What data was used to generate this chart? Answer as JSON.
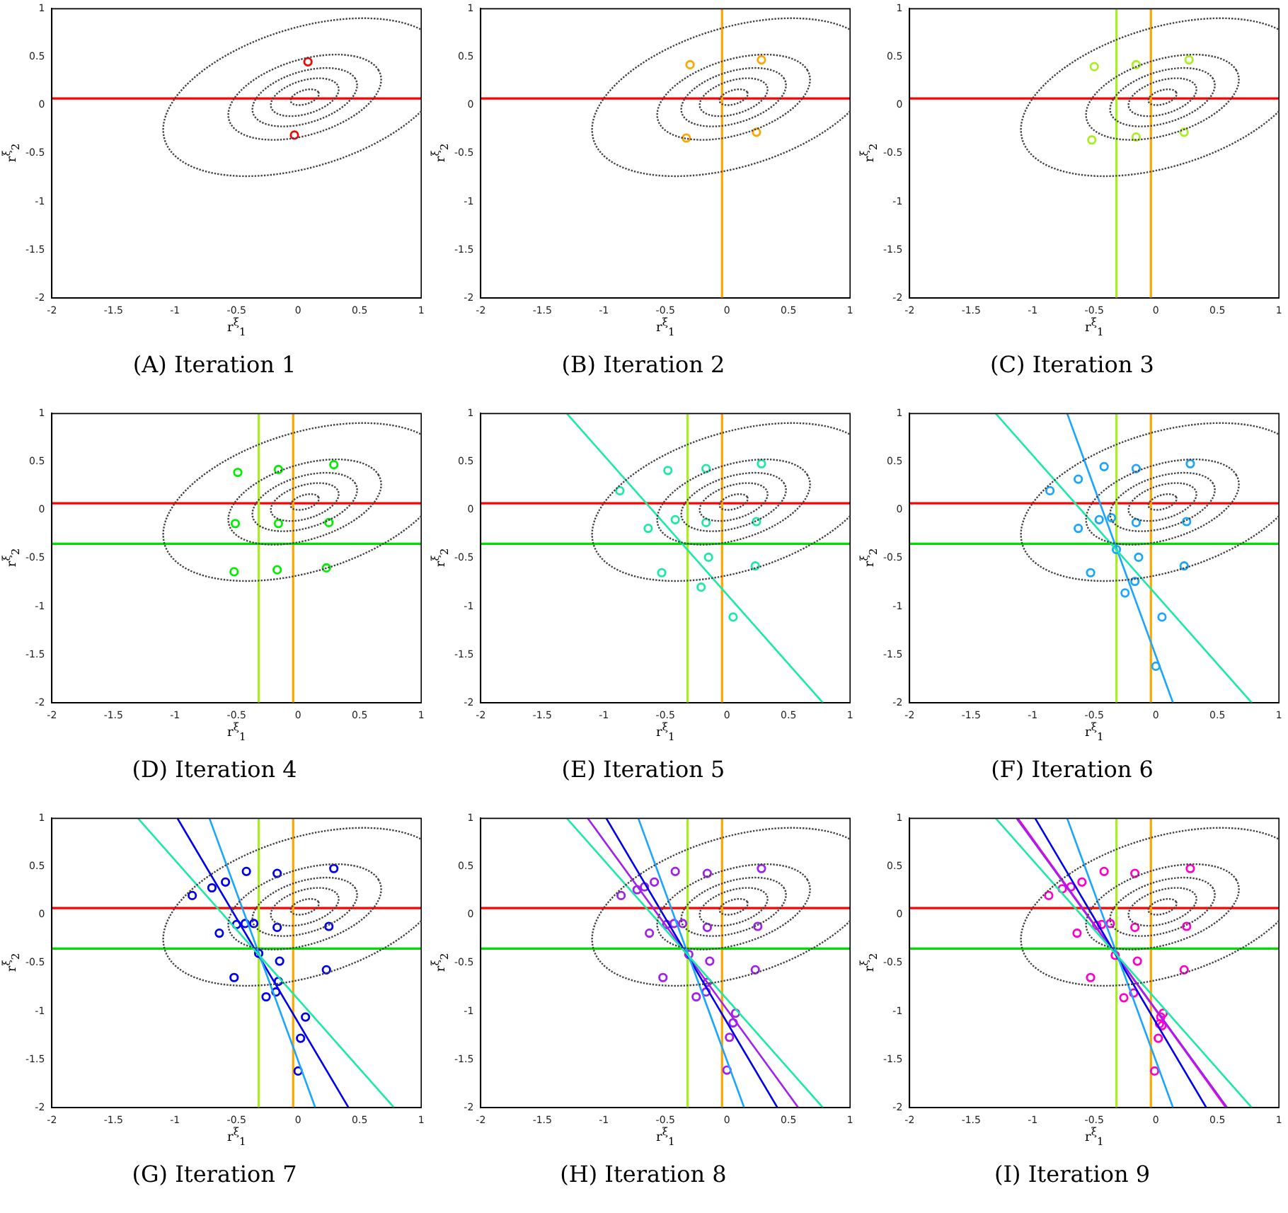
{
  "chart_data": [
    {
      "type": "scatter",
      "title": "(A) Iteration 1",
      "xlabel": "r$^{ξ}$$_{1}$",
      "ylabel": "r$^{ξ}$$_{2}$",
      "xlim": [
        -2,
        1
      ],
      "ylim": [
        -2,
        1
      ],
      "xticks": [
        -2,
        -1.5,
        -1,
        -0.5,
        0,
        0.5,
        1
      ],
      "yticks": [
        -2,
        -1.5,
        -1,
        -0.5,
        0,
        0.5,
        1
      ],
      "ref_lines": [
        {
          "axis": "y",
          "value": 0.07,
          "color": "#ff0000"
        }
      ],
      "series": [
        {
          "type": "scatter",
          "color": "#ff0000",
          "marker": "circle",
          "x": [
            0.08,
            -0.03
          ],
          "values": [
            0.45,
            -0.31
          ]
        }
      ]
    },
    {
      "type": "scatter",
      "title": "(B) Iteration 2",
      "xlabel": "r$^{ξ}$$_{1}$",
      "ylabel": "r$^{ξ}$$_{2}$",
      "xlim": [
        -2,
        1
      ],
      "ylim": [
        -2,
        1
      ],
      "xticks": [
        -2,
        -1.5,
        -1,
        -0.5,
        0,
        0.5,
        1
      ],
      "yticks": [
        -2,
        -1.5,
        -1,
        -0.5,
        0,
        0.5,
        1
      ],
      "ref_lines": [
        {
          "axis": "y",
          "value": 0.07,
          "color": "#ff0000"
        },
        {
          "axis": "x",
          "value": -0.04,
          "color": "#ffa500"
        }
      ],
      "series": [
        {
          "type": "scatter",
          "color": "#ffa500",
          "marker": "circle",
          "x": [
            -0.3,
            0.28,
            -0.33,
            0.24
          ],
          "values": [
            0.42,
            0.47,
            -0.34,
            -0.28
          ]
        }
      ]
    },
    {
      "type": "scatter",
      "title": "(C) Iteration 3",
      "xlabel": "r$^{ξ}$$_{1}$",
      "ylabel": "r$^{ξ}$$_{2}$",
      "xlim": [
        -2,
        1
      ],
      "ylim": [
        -2,
        1
      ],
      "xticks": [
        -2,
        -1.5,
        -1,
        -0.5,
        0,
        0.5,
        1
      ],
      "yticks": [
        -2,
        -1.5,
        -1,
        -0.5,
        0,
        0.5,
        1
      ],
      "ref_lines": [
        {
          "axis": "y",
          "value": 0.07,
          "color": "#ff0000"
        },
        {
          "axis": "x",
          "value": -0.04,
          "color": "#ffa500"
        },
        {
          "axis": "x",
          "value": -0.32,
          "color": "#aaee22"
        }
      ],
      "series": [
        {
          "type": "scatter",
          "color": "#aaee22",
          "marker": "circle",
          "x": [
            -0.5,
            -0.16,
            0.27,
            -0.52,
            -0.16,
            0.23
          ],
          "values": [
            0.4,
            0.42,
            0.47,
            -0.36,
            -0.33,
            -0.28
          ]
        }
      ]
    },
    {
      "type": "scatter",
      "title": "(D) Iteration 4",
      "xlabel": "r$^{ξ}$$_{1}$",
      "ylabel": "r$^{ξ}$$_{2}$",
      "xlim": [
        -2,
        1
      ],
      "ylim": [
        -2,
        1
      ],
      "xticks": [
        -2,
        -1.5,
        -1,
        -0.5,
        0,
        0.5,
        1
      ],
      "yticks": [
        -2,
        -1.5,
        -1,
        -0.5,
        0,
        0.5,
        1
      ],
      "ref_lines": [
        {
          "axis": "y",
          "value": 0.07,
          "color": "#ff0000"
        },
        {
          "axis": "x",
          "value": -0.04,
          "color": "#ffa500"
        },
        {
          "axis": "x",
          "value": -0.32,
          "color": "#aaee22"
        },
        {
          "axis": "y",
          "value": -0.35,
          "color": "#00dd00"
        }
      ],
      "series": [
        {
          "type": "scatter",
          "color": "#00ee00",
          "marker": "circle",
          "x": [
            -0.49,
            -0.16,
            0.29,
            -0.51,
            -0.16,
            0.25,
            -0.52,
            -0.17,
            0.23
          ],
          "values": [
            0.39,
            0.42,
            0.47,
            -0.14,
            -0.14,
            -0.13,
            -0.64,
            -0.62,
            -0.6
          ]
        }
      ]
    },
    {
      "type": "scatter",
      "title": "(E) Iteration 5",
      "xlabel": "r$^{ξ}$$_{1}$",
      "ylabel": "r$^{ξ}$$_{2}$",
      "xlim": [
        -2,
        1
      ],
      "ylim": [
        -2,
        1
      ],
      "xticks": [
        -2,
        -1.5,
        -1,
        -0.5,
        0,
        0.5,
        1
      ],
      "yticks": [
        -2,
        -1.5,
        -1,
        -0.5,
        0,
        0.5,
        1
      ],
      "ref_lines": [
        {
          "axis": "y",
          "value": 0.07,
          "color": "#ff0000"
        },
        {
          "axis": "x",
          "value": -0.04,
          "color": "#ffa500"
        },
        {
          "axis": "x",
          "value": -0.32,
          "color": "#aaee22"
        },
        {
          "axis": "y",
          "value": -0.35,
          "color": "#00dd00"
        }
      ],
      "series": [
        {
          "type": "line",
          "color": "#1de9a6",
          "line_style": "solid",
          "marker": "none",
          "x": [
            -1.3,
            0.78
          ],
          "values": [
            1,
            -2
          ]
        },
        {
          "type": "scatter",
          "color": "#1de9a6",
          "marker": "circle",
          "x": [
            -0.48,
            -0.17,
            0.28,
            -0.87,
            -0.42,
            -0.17,
            0.24,
            -0.64,
            -0.15,
            -0.53,
            0.23,
            -0.21,
            0.05
          ],
          "values": [
            0.41,
            0.43,
            0.48,
            0.2,
            -0.1,
            -0.13,
            -0.12,
            -0.19,
            -0.49,
            -0.65,
            -0.58,
            -0.8,
            -1.11
          ]
        }
      ]
    },
    {
      "type": "scatter",
      "title": "(F) Iteration 6",
      "xlabel": "r$^{ξ}$$_{1}$",
      "ylabel": "r$^{ξ}$$_{2}$",
      "xlim": [
        -2,
        1
      ],
      "ylim": [
        -2,
        1
      ],
      "xticks": [
        -2,
        -1.5,
        -1,
        -0.5,
        0,
        0.5,
        1
      ],
      "yticks": [
        -2,
        -1.5,
        -1,
        -0.5,
        0,
        0.5,
        1
      ],
      "ref_lines": [
        {
          "axis": "y",
          "value": 0.07,
          "color": "#ff0000"
        },
        {
          "axis": "x",
          "value": -0.04,
          "color": "#ffa500"
        },
        {
          "axis": "x",
          "value": -0.32,
          "color": "#aaee22"
        },
        {
          "axis": "y",
          "value": -0.35,
          "color": "#00dd00"
        }
      ],
      "series": [
        {
          "type": "line",
          "color": "#1de9a6",
          "line_style": "solid",
          "marker": "none",
          "x": [
            -1.3,
            0.78
          ],
          "values": [
            1,
            -2
          ]
        },
        {
          "type": "line",
          "color": "#1aa6ff",
          "line_style": "solid",
          "marker": "none",
          "x": [
            -0.72,
            0.14
          ],
          "values": [
            1,
            -2
          ]
        },
        {
          "type": "scatter",
          "color": "#1aa6ff",
          "marker": "circle",
          "x": [
            -0.86,
            -0.63,
            -0.42,
            -0.16,
            0.28,
            -0.46,
            -0.36,
            -0.16,
            0.25,
            -0.63,
            -0.32,
            -0.14,
            -0.53,
            0.23,
            -0.17,
            -0.25,
            0.05,
            0
          ],
          "values": [
            0.2,
            0.32,
            0.45,
            0.43,
            0.48,
            -0.1,
            -0.08,
            -0.13,
            -0.12,
            -0.19,
            -0.41,
            -0.49,
            -0.65,
            -0.58,
            -0.74,
            -0.86,
            -1.11,
            -1.62
          ]
        }
      ]
    },
    {
      "type": "scatter",
      "title": "(G) Iteration 7",
      "xlabel": "r$^{ξ}$$_{1}$",
      "ylabel": "r$^{ξ}$$_{2}$",
      "xlim": [
        -2,
        1
      ],
      "ylim": [
        -2,
        1
      ],
      "xticks": [
        -2,
        -1.5,
        -1,
        -0.5,
        0,
        0.5,
        1
      ],
      "yticks": [
        -2,
        -1.5,
        -1,
        -0.5,
        0,
        0.5,
        1
      ],
      "ref_lines": [
        {
          "axis": "y",
          "value": 0.07,
          "color": "#ff0000"
        },
        {
          "axis": "x",
          "value": -0.04,
          "color": "#ffa500"
        },
        {
          "axis": "x",
          "value": -0.32,
          "color": "#aaee22"
        },
        {
          "axis": "y",
          "value": -0.35,
          "color": "#00dd00"
        }
      ],
      "series": [
        {
          "type": "line",
          "color": "#1de9a6",
          "line_style": "solid",
          "marker": "none",
          "x": [
            -1.3,
            0.78
          ],
          "values": [
            1,
            -2
          ]
        },
        {
          "type": "line",
          "color": "#1aa6ff",
          "line_style": "solid",
          "marker": "none",
          "x": [
            -0.72,
            0.14
          ],
          "values": [
            1,
            -2
          ]
        },
        {
          "type": "line",
          "color": "#0000ee",
          "line_style": "solid",
          "marker": "none",
          "x": [
            -0.98,
            0.41
          ],
          "values": [
            1,
            -2
          ]
        },
        {
          "type": "scatter",
          "color": "#0000ee",
          "marker": "circle",
          "x": [
            -0.86,
            -0.7,
            -0.59,
            -0.42,
            -0.17,
            0.29,
            -0.5,
            -0.43,
            -0.36,
            -0.17,
            0.25,
            -0.64,
            -0.32,
            -0.15,
            -0.52,
            0.23,
            -0.16,
            -0.18,
            -0.26,
            0.06,
            0.02,
            0
          ],
          "values": [
            0.2,
            0.28,
            0.34,
            0.45,
            0.43,
            0.48,
            -0.1,
            -0.09,
            -0.09,
            -0.13,
            -0.12,
            -0.19,
            -0.4,
            -0.48,
            -0.65,
            -0.57,
            -0.69,
            -0.8,
            -0.85,
            -1.06,
            -1.28,
            -1.62
          ]
        }
      ]
    },
    {
      "type": "scatter",
      "title": "(H) Iteration 8",
      "xlabel": "r$^{ξ}$$_{1}$",
      "ylabel": "r$^{ξ}$$_{2}$",
      "xlim": [
        -2,
        1
      ],
      "ylim": [
        -2,
        1
      ],
      "xticks": [
        -2,
        -1.5,
        -1,
        -0.5,
        0,
        0.5,
        1
      ],
      "yticks": [
        -2,
        -1.5,
        -1,
        -0.5,
        0,
        0.5,
        1
      ],
      "ref_lines": [
        {
          "axis": "y",
          "value": 0.07,
          "color": "#ff0000"
        },
        {
          "axis": "x",
          "value": -0.04,
          "color": "#ffa500"
        },
        {
          "axis": "x",
          "value": -0.32,
          "color": "#aaee22"
        },
        {
          "axis": "y",
          "value": -0.35,
          "color": "#00dd00"
        }
      ],
      "series": [
        {
          "type": "line",
          "color": "#1de9a6",
          "line_style": "solid",
          "marker": "none",
          "x": [
            -1.3,
            0.78
          ],
          "values": [
            1,
            -2
          ]
        },
        {
          "type": "line",
          "color": "#1aa6ff",
          "line_style": "solid",
          "marker": "none",
          "x": [
            -0.72,
            0.14
          ],
          "values": [
            1,
            -2
          ]
        },
        {
          "type": "line",
          "color": "#0000ee",
          "line_style": "solid",
          "marker": "none",
          "x": [
            -0.98,
            0.41
          ],
          "values": [
            1,
            -2
          ]
        },
        {
          "type": "line",
          "color": "#a020f0",
          "line_style": "solid",
          "marker": "none",
          "x": [
            -1.13,
            0.58
          ],
          "values": [
            1,
            -2
          ]
        },
        {
          "type": "scatter",
          "color": "#a020f0",
          "marker": "circle",
          "x": [
            -0.86,
            -0.73,
            -0.67,
            -0.59,
            -0.42,
            -0.16,
            0.28,
            -0.49,
            -0.43,
            -0.36,
            -0.16,
            0.25,
            -0.63,
            -0.31,
            -0.14,
            -0.52,
            0.23,
            -0.16,
            -0.17,
            -0.25,
            0.07,
            0.05,
            0.02,
            0
          ],
          "values": [
            0.2,
            0.26,
            0.29,
            0.34,
            0.45,
            0.43,
            0.48,
            -0.1,
            -0.09,
            -0.09,
            -0.13,
            -0.12,
            -0.19,
            -0.41,
            -0.48,
            -0.65,
            -0.57,
            -0.7,
            -0.8,
            -0.85,
            -1.02,
            -1.12,
            -1.27,
            -1.61
          ]
        }
      ]
    },
    {
      "type": "scatter",
      "title": "(I) Iteration 9",
      "xlabel": "r$^{ξ}$$_{1}$",
      "ylabel": "r$^{ξ}$$_{2}$",
      "xlim": [
        -2,
        1
      ],
      "ylim": [
        -2,
        1
      ],
      "xticks": [
        -2,
        -1.5,
        -1,
        -0.5,
        0,
        0.5,
        1
      ],
      "yticks": [
        -2,
        -1.5,
        -1,
        -0.5,
        0,
        0.5,
        1
      ],
      "ref_lines": [
        {
          "axis": "y",
          "value": 0.07,
          "color": "#ff0000"
        },
        {
          "axis": "x",
          "value": -0.04,
          "color": "#ffa500"
        },
        {
          "axis": "x",
          "value": -0.32,
          "color": "#aaee22"
        },
        {
          "axis": "y",
          "value": -0.35,
          "color": "#00dd00"
        }
      ],
      "series": [
        {
          "type": "line",
          "color": "#1de9a6",
          "line_style": "solid",
          "marker": "none",
          "x": [
            -1.3,
            0.78
          ],
          "values": [
            1,
            -2
          ]
        },
        {
          "type": "line",
          "color": "#1aa6ff",
          "line_style": "solid",
          "marker": "none",
          "x": [
            -0.72,
            0.14
          ],
          "values": [
            1,
            -2
          ]
        },
        {
          "type": "line",
          "color": "#0000ee",
          "line_style": "solid",
          "marker": "none",
          "x": [
            -0.98,
            0.41
          ],
          "values": [
            1,
            -2
          ]
        },
        {
          "type": "line",
          "color": "#a020f0",
          "line_style": "solid",
          "marker": "none",
          "x": [
            -1.13,
            0.58
          ],
          "values": [
            1,
            -2
          ]
        },
        {
          "type": "line",
          "color": "#ff00cc",
          "line_style": "solid",
          "marker": "none",
          "x": [
            -1.12,
            0.57
          ],
          "values": [
            1,
            -2
          ]
        },
        {
          "type": "scatter",
          "color": "#ff00cc",
          "marker": "circle",
          "x": [
            -0.87,
            -0.76,
            -0.69,
            -0.6,
            -0.42,
            -0.17,
            0.28,
            -0.48,
            -0.44,
            -0.37,
            -0.17,
            0.25,
            -0.64,
            -0.33,
            -0.15,
            -0.53,
            0.23,
            -0.18,
            -0.26,
            0.06,
            0.04,
            0.03,
            0.05,
            0.02,
            -0.01
          ],
          "values": [
            0.2,
            0.27,
            0.29,
            0.34,
            0.45,
            0.43,
            0.48,
            -0.11,
            -0.1,
            -0.09,
            -0.13,
            -0.12,
            -0.19,
            -0.42,
            -0.48,
            -0.65,
            -0.57,
            -0.81,
            -0.86,
            -1.02,
            -1.06,
            -1.13,
            -1.15,
            -1.28,
            -1.62
          ]
        }
      ]
    }
  ]
}
